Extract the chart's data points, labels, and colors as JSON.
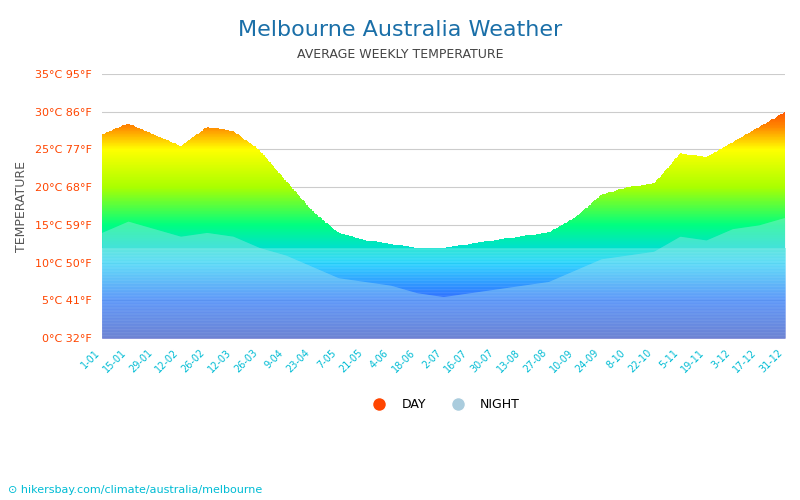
{
  "title": "Melbourne Australia Weather",
  "subtitle": "AVERAGE WEEKLY TEMPERATURE",
  "ylabel": "TEMPERATURE",
  "watermark": "hikersbay.com/climate/australia/melbourne",
  "x_labels": [
    "1-01",
    "15-01",
    "29-01",
    "12-02",
    "26-02",
    "12-03",
    "26-03",
    "9-04",
    "23-04",
    "7-05",
    "21-05",
    "4-06",
    "18-06",
    "2-07",
    "16-07",
    "30-07",
    "13-08",
    "27-08",
    "10-09",
    "24-09",
    "8-10",
    "22-10",
    "5-11",
    "19-11",
    "3-12",
    "17-12",
    "31-12"
  ],
  "ylim_min": 0,
  "ylim_max": 35,
  "yticks_c": [
    0,
    5,
    10,
    15,
    20,
    25,
    30,
    35
  ],
  "yticks_f": [
    32,
    41,
    50,
    59,
    68,
    77,
    86,
    95
  ],
  "day_temps": [
    27,
    28.5,
    27,
    25.5,
    28,
    27.5,
    25,
    21,
    17,
    14,
    13,
    12.5,
    12,
    12,
    12.5,
    13,
    13.5,
    14,
    16,
    19,
    20,
    20.5,
    24.5,
    24,
    26,
    28,
    30
  ],
  "night_temps": [
    14,
    15.5,
    14.5,
    13.5,
    14,
    13.5,
    12,
    11,
    9.5,
    8,
    7.5,
    7,
    6,
    5.5,
    6,
    6.5,
    7,
    7.5,
    9,
    10.5,
    11,
    11.5,
    13.5,
    13,
    14.5,
    15,
    16
  ],
  "base_temp": 0,
  "title_color": "#1a6fa8",
  "subtitle_color": "#444444",
  "ylabel_color": "#555555",
  "xtick_color": "#00bcd4",
  "ytick_left_color": "#ff4500",
  "grid_color": "#cccccc",
  "watermark_color": "#00bcd4",
  "temp_color_stops": [
    [
      0,
      "#1a1ab5"
    ],
    [
      5,
      "#0044ff"
    ],
    [
      10,
      "#00ccff"
    ],
    [
      15,
      "#00ff80"
    ],
    [
      20,
      "#aaff00"
    ],
    [
      25,
      "#ffff00"
    ],
    [
      28,
      "#ff8800"
    ],
    [
      32,
      "#ff2200"
    ],
    [
      35,
      "#cc0000"
    ]
  ]
}
